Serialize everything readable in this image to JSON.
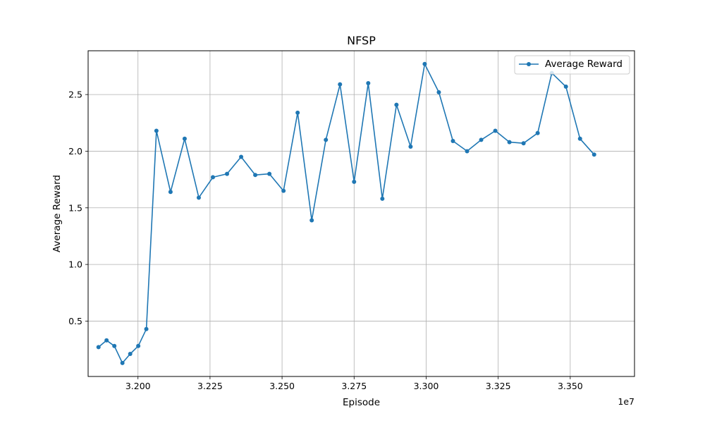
{
  "chart_data": {
    "type": "line",
    "title": "NFSP",
    "xlabel": "Episode",
    "ylabel": "Average Reward",
    "x_offset_label": "1e7",
    "xlim": [
      3.1827,
      3.3723
    ],
    "ylim": [
      0.0111,
      2.8866
    ],
    "x_ticks": [
      3.2,
      3.225,
      3.25,
      3.275,
      3.3,
      3.325,
      3.35
    ],
    "x_tick_labels": [
      "3.200",
      "3.225",
      "3.250",
      "3.275",
      "3.300",
      "3.325",
      "3.350"
    ],
    "y_ticks": [
      0.5,
      1.0,
      1.5,
      2.0,
      2.5
    ],
    "y_tick_labels": [
      "0.5",
      "1.0",
      "1.5",
      "2.0",
      "2.5"
    ],
    "grid": true,
    "legend_position": "top-right",
    "color": "#1f77b4",
    "series": [
      {
        "name": "Average Reward",
        "x": [
          3.1863,
          3.1891,
          3.1918,
          3.1946,
          3.1973,
          3.2001,
          3.2029,
          3.2064,
          3.2113,
          3.2162,
          3.2211,
          3.226,
          3.2309,
          3.2358,
          3.2407,
          3.2456,
          3.2505,
          3.2554,
          3.2603,
          3.2652,
          3.2701,
          3.275,
          3.2799,
          3.2848,
          3.2897,
          3.2946,
          3.2995,
          3.3044,
          3.3093,
          3.3142,
          3.3191,
          3.324,
          3.3289,
          3.3338,
          3.3387,
          3.3436,
          3.3485,
          3.3534,
          3.3583
        ],
        "y": [
          0.27,
          0.33,
          0.28,
          0.13,
          0.21,
          0.28,
          0.43,
          2.18,
          1.64,
          2.11,
          1.59,
          1.77,
          1.8,
          1.95,
          1.79,
          1.8,
          1.65,
          2.34,
          1.39,
          2.1,
          2.59,
          1.73,
          2.6,
          1.58,
          2.41,
          2.04,
          2.77,
          2.52,
          2.09,
          2.0,
          2.1,
          2.18,
          2.08,
          2.07,
          2.16,
          2.69,
          2.57,
          2.11,
          1.97
        ]
      }
    ]
  }
}
